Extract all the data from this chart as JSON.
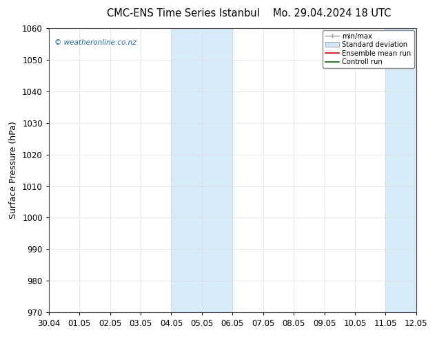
{
  "title_left": "CMC-ENS Time Series Istanbul",
  "title_right": "Mo. 29.04.2024 18 UTC",
  "ylabel": "Surface Pressure (hPa)",
  "ylim": [
    970,
    1060
  ],
  "yticks": [
    970,
    980,
    990,
    1000,
    1010,
    1020,
    1030,
    1040,
    1050,
    1060
  ],
  "xtick_labels": [
    "30.04",
    "01.05",
    "02.05",
    "03.05",
    "04.05",
    "05.05",
    "06.05",
    "07.05",
    "08.05",
    "09.05",
    "10.05",
    "11.05",
    "12.05"
  ],
  "watermark": "© weatheronline.co.nz",
  "legend_entries": [
    "min/max",
    "Standard deviation",
    "Ensemble mean run",
    "Controll run"
  ],
  "shaded_bands": [
    {
      "xstart": 4,
      "xend": 6,
      "color": "#d6eaf8"
    },
    {
      "xstart": 11,
      "xend": 13,
      "color": "#d6eaf8"
    }
  ],
  "band_line_color": "#b0cfe0",
  "grid_color": "#dddddd",
  "background_color": "#ffffff",
  "title_fontsize": 10.5,
  "axis_fontsize": 8.5,
  "ylabel_fontsize": 9,
  "watermark_color": "#1a6699"
}
